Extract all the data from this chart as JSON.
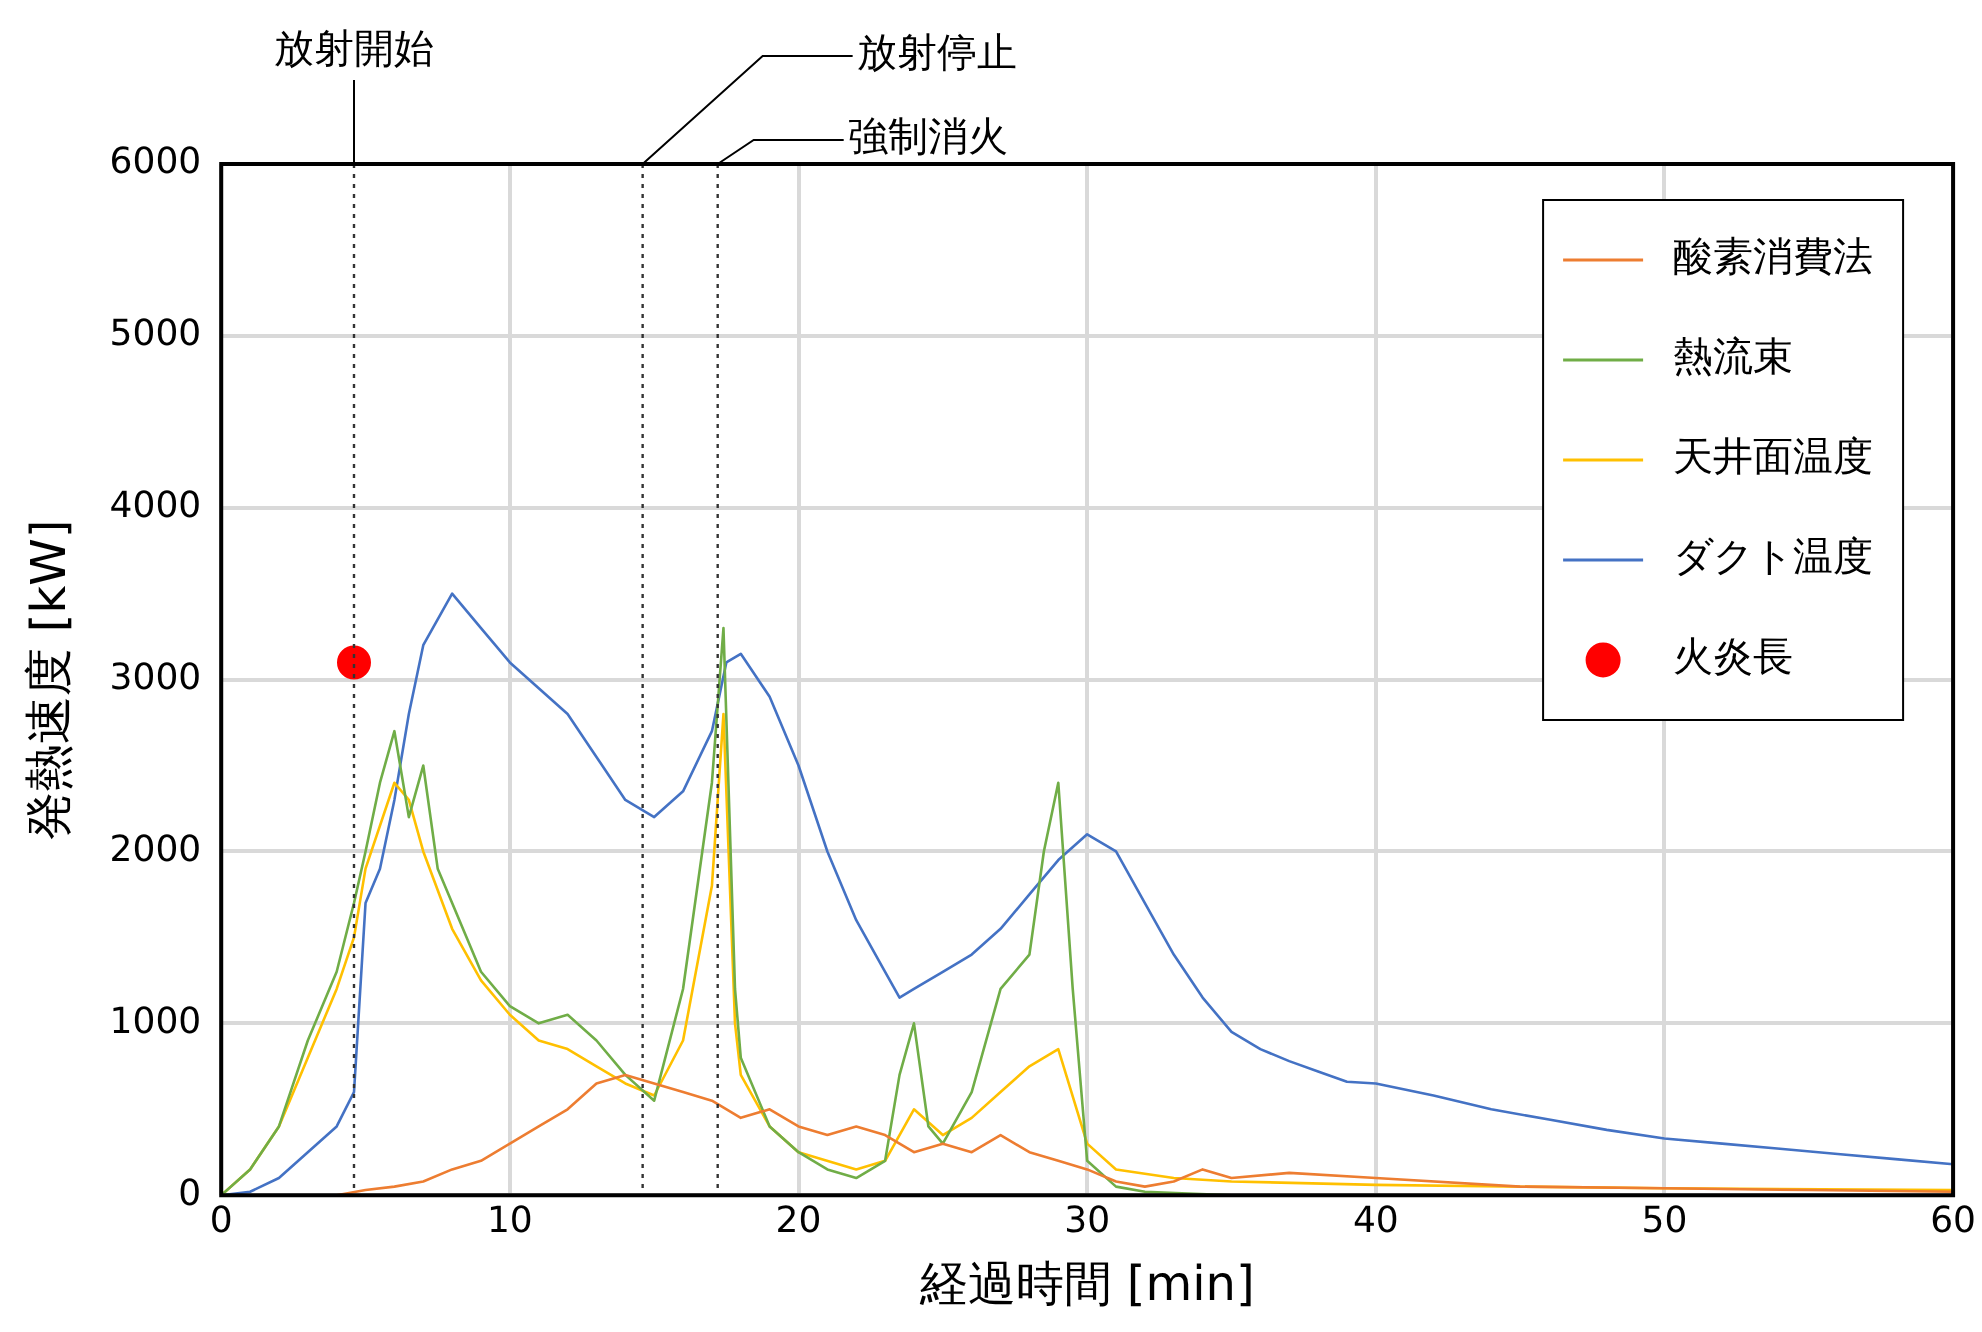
{
  "chart_data": {
    "type": "line",
    "xlabel": "経過時間 [min]",
    "ylabel": "発熱速度 [kW]",
    "xlim": [
      0,
      60
    ],
    "xticks": [
      0,
      10,
      20,
      30,
      40,
      50,
      60
    ],
    "ylim": [
      0,
      6000
    ],
    "yticks": [
      0,
      1000,
      2000,
      3000,
      4000,
      5000,
      6000
    ],
    "grid": true,
    "legend": "top right",
    "marker": "none",
    "line_style": "solid",
    "series": [
      {
        "name": "酸素消費法",
        "color": "#ed7d31",
        "x": [
          4,
          5,
          6,
          7,
          8,
          9,
          10,
          11,
          12,
          13,
          14,
          15,
          16,
          17,
          18,
          19,
          20,
          21,
          22,
          23,
          24,
          25,
          26,
          27,
          28,
          29,
          30,
          31,
          32,
          33,
          34,
          35,
          37,
          40,
          45,
          50,
          55,
          60
        ],
        "values": [
          0,
          30,
          50,
          80,
          150,
          200,
          300,
          400,
          500,
          650,
          700,
          650,
          600,
          550,
          450,
          500,
          400,
          350,
          400,
          350,
          250,
          300,
          250,
          350,
          250,
          200,
          150,
          80,
          50,
          80,
          150,
          100,
          130,
          100,
          50,
          40,
          30,
          20
        ]
      },
      {
        "name": "熱流束",
        "color": "#70ad47",
        "x": [
          0,
          1,
          2,
          3,
          4,
          4.6,
          5,
          5.5,
          6,
          6.5,
          7,
          7.5,
          8,
          9,
          10,
          11,
          12,
          13,
          14,
          15,
          16,
          17,
          17.4,
          17.8,
          18,
          19,
          20,
          21,
          22,
          23,
          23.5,
          24,
          24.5,
          25,
          26,
          27,
          28,
          28.5,
          29,
          29.5,
          30,
          31,
          32,
          35,
          60
        ],
        "values": [
          0,
          150,
          400,
          900,
          1300,
          1700,
          2000,
          2400,
          2700,
          2200,
          2500,
          1900,
          1700,
          1300,
          1100,
          1000,
          1050,
          900,
          700,
          550,
          1200,
          2400,
          3300,
          1200,
          800,
          400,
          250,
          150,
          100,
          200,
          700,
          1000,
          400,
          300,
          600,
          1200,
          1400,
          2000,
          2400,
          1200,
          200,
          50,
          20,
          0,
          0
        ]
      },
      {
        "name": "天井面温度",
        "color": "#ffc000",
        "x": [
          0,
          1,
          2,
          3,
          4,
          4.6,
          5,
          6,
          6.5,
          7,
          8,
          9,
          10,
          11,
          12,
          13,
          14,
          15,
          16,
          17,
          17.4,
          17.8,
          18,
          19,
          20,
          22,
          23,
          24,
          25,
          26,
          27,
          28,
          29,
          30,
          31,
          33,
          35,
          40,
          50,
          60
        ],
        "values": [
          0,
          150,
          400,
          800,
          1200,
          1500,
          1900,
          2400,
          2300,
          2000,
          1550,
          1250,
          1050,
          900,
          850,
          750,
          650,
          580,
          900,
          1800,
          2800,
          1000,
          700,
          400,
          250,
          150,
          200,
          500,
          350,
          450,
          600,
          750,
          850,
          300,
          150,
          100,
          80,
          60,
          40,
          30
        ]
      },
      {
        "name": "ダクト温度",
        "color": "#4472c4",
        "x": [
          0,
          1,
          2,
          3,
          4,
          4.6,
          5,
          5.5,
          6,
          6.5,
          7,
          8,
          9,
          10,
          11,
          12,
          13,
          14,
          15,
          16,
          17,
          17.5,
          18,
          19,
          20,
          21,
          22,
          23,
          23.5,
          24,
          25,
          26,
          27,
          28,
          29,
          30,
          31,
          32,
          33,
          34,
          35,
          36,
          37,
          38,
          39,
          40,
          42,
          44,
          46,
          48,
          50,
          52,
          54,
          56,
          58,
          60
        ],
        "values": [
          0,
          20,
          100,
          250,
          400,
          600,
          1700,
          1900,
          2300,
          2800,
          3200,
          3500,
          3300,
          3100,
          2950,
          2800,
          2550,
          2300,
          2200,
          2350,
          2700,
          3100,
          3150,
          2900,
          2500,
          2000,
          1600,
          1300,
          1150,
          1200,
          1300,
          1400,
          1550,
          1750,
          1950,
          2100,
          2000,
          1700,
          1400,
          1150,
          950,
          850,
          780,
          720,
          660,
          650,
          580,
          500,
          440,
          380,
          330,
          300,
          270,
          240,
          210,
          180
        ]
      },
      {
        "name": "火炎長",
        "type": "scatter",
        "marker": "circle",
        "color": "#ff0000",
        "x": [
          4.6
        ],
        "values": [
          3100
        ]
      }
    ],
    "ref_lines": [
      {
        "axis": "x",
        "value": 4.6,
        "label": "放射開始",
        "line_style": "dotted"
      },
      {
        "axis": "x",
        "value": 14.6,
        "label": "放射停止",
        "line_style": "dotted"
      },
      {
        "axis": "x",
        "value": 17.2,
        "label": "強制消火",
        "line_style": "dotted"
      }
    ]
  }
}
